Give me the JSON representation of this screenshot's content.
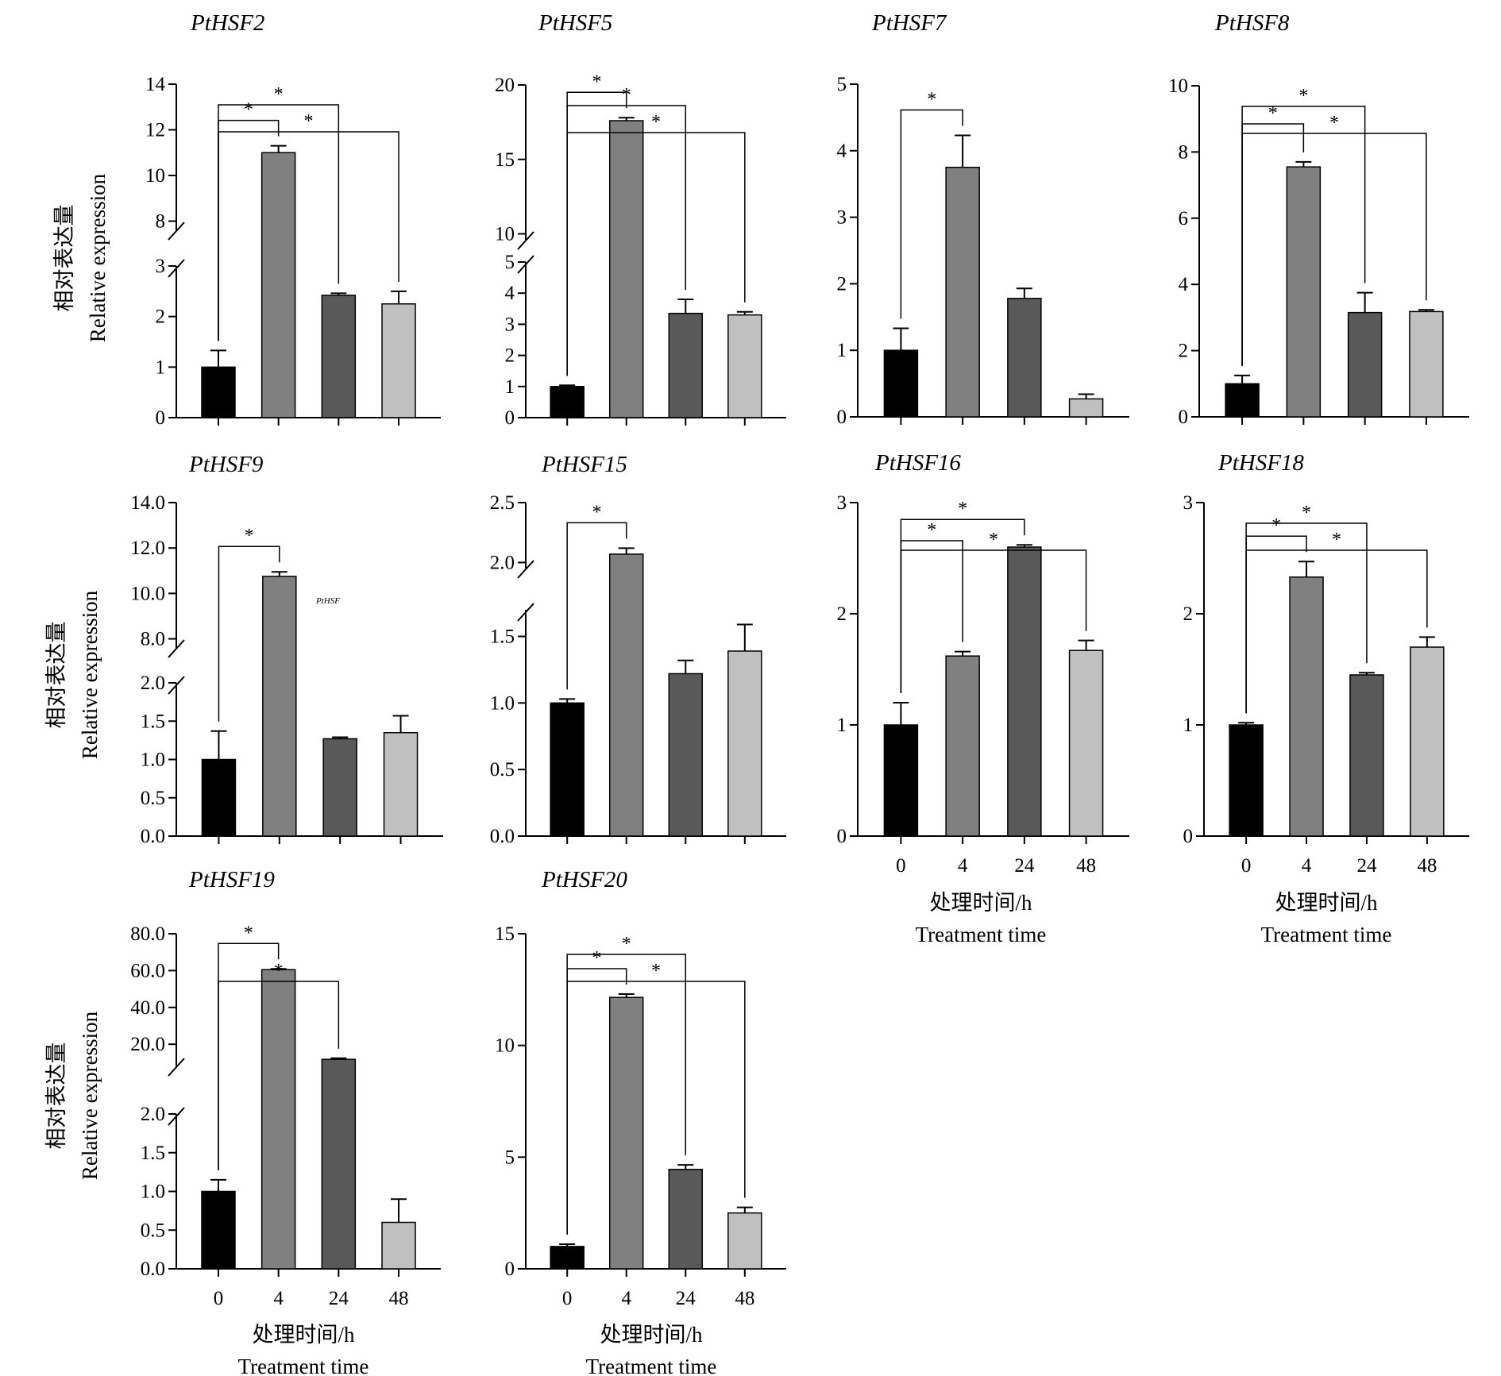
{
  "figure": {
    "y_label_cn": "相对表达量",
    "y_label_en": "Relative expression",
    "x_label_cn": "处理时间/h",
    "x_label_en": "Treatment time",
    "stray_label": "PtHSF",
    "bar_colors": [
      "#000000",
      "#808080",
      "#595959",
      "#c0c0c0"
    ]
  },
  "chart_data": [
    {
      "type": "bar",
      "title": "PtHSF2",
      "categories": [
        "0",
        "4",
        "24",
        "48"
      ],
      "values": [
        1.0,
        11.0,
        2.42,
        2.25
      ],
      "errors": [
        0.33,
        0.3,
        0.04,
        0.25
      ],
      "broken_axis": true,
      "lower_ylim": [
        0,
        3
      ],
      "upper_ylim": [
        7.6,
        14
      ],
      "yticks_lower": [
        0,
        1,
        2,
        3
      ],
      "yticks_upper": [
        8,
        10,
        12,
        14
      ],
      "significance": [
        {
          "from": "0",
          "to": "4",
          "label": "*"
        },
        {
          "from": "0",
          "to": "24",
          "label": "*"
        },
        {
          "from": "0",
          "to": "48",
          "label": "*"
        }
      ]
    },
    {
      "type": "bar",
      "title": "PtHSF5",
      "categories": [
        "0",
        "4",
        "24",
        "48"
      ],
      "values": [
        1.0,
        17.6,
        3.35,
        3.3
      ],
      "errors": [
        0.04,
        0.2,
        0.45,
        0.1
      ],
      "broken_axis": true,
      "lower_ylim": [
        0,
        5
      ],
      "upper_ylim": [
        9.6,
        20
      ],
      "yticks_lower": [
        0,
        1,
        2,
        3,
        4,
        5
      ],
      "yticks_upper": [
        10,
        15,
        20
      ],
      "significance": [
        {
          "from": "0",
          "to": "4",
          "label": "*"
        },
        {
          "from": "0",
          "to": "24",
          "label": "*"
        },
        {
          "from": "0",
          "to": "48",
          "label": "*"
        }
      ]
    },
    {
      "type": "bar",
      "title": "PtHSF7",
      "categories": [
        "0",
        "4",
        "24",
        "48"
      ],
      "values": [
        1.0,
        3.75,
        1.78,
        0.27
      ],
      "errors": [
        0.33,
        0.48,
        0.15,
        0.07
      ],
      "broken_axis": false,
      "ylim": [
        0,
        5
      ],
      "yticks": [
        0,
        1,
        2,
        3,
        4,
        5
      ],
      "significance": [
        {
          "from": "0",
          "to": "4",
          "label": "*"
        }
      ]
    },
    {
      "type": "bar",
      "title": "PtHSF8",
      "categories": [
        "0",
        "4",
        "24",
        "48"
      ],
      "values": [
        1.0,
        7.55,
        3.15,
        3.18
      ],
      "errors": [
        0.25,
        0.15,
        0.6,
        0.05
      ],
      "broken_axis": false,
      "ylim": [
        0,
        10
      ],
      "yticks": [
        0,
        2,
        4,
        6,
        8,
        10
      ],
      "significance": [
        {
          "from": "0",
          "to": "4",
          "label": "*"
        },
        {
          "from": "0",
          "to": "24",
          "label": "*"
        },
        {
          "from": "0",
          "to": "48",
          "label": "*"
        }
      ]
    },
    {
      "type": "bar",
      "title": "PtHSF9",
      "categories": [
        "0",
        "4",
        "24",
        "48"
      ],
      "values": [
        1.0,
        10.75,
        1.27,
        1.35
      ],
      "errors": [
        0.37,
        0.2,
        0.02,
        0.22
      ],
      "broken_axis": true,
      "lower_ylim": [
        0,
        2.0
      ],
      "upper_ylim": [
        7.6,
        14
      ],
      "yticks_lower": [
        0,
        0.5,
        1.0,
        1.5,
        2.0
      ],
      "yticks_upper": [
        8,
        10,
        12,
        14
      ],
      "tick_decimals": 1,
      "significance": [
        {
          "from": "0",
          "to": "4",
          "label": "*"
        }
      ]
    },
    {
      "type": "bar",
      "title": "PtHSF15",
      "categories": [
        "0",
        "4",
        "24",
        "48"
      ],
      "values": [
        1.0,
        2.07,
        1.22,
        1.39
      ],
      "errors": [
        0.03,
        0.05,
        0.1,
        0.2
      ],
      "broken_axis": true,
      "lower_ylim": [
        0,
        1.7
      ],
      "upper_ylim": [
        1.95,
        2.5
      ],
      "yticks_lower": [
        0,
        0.5,
        1.0,
        1.5
      ],
      "yticks_upper": [
        2.0,
        2.5
      ],
      "tick_decimals": 1,
      "significance": [
        {
          "from": "0",
          "to": "4",
          "label": "*"
        }
      ]
    },
    {
      "type": "bar",
      "title": "PtHSF16",
      "categories": [
        "0",
        "4",
        "24",
        "48"
      ],
      "values": [
        1.0,
        1.62,
        2.6,
        1.67
      ],
      "errors": [
        0.2,
        0.04,
        0.02,
        0.09
      ],
      "broken_axis": false,
      "ylim": [
        0,
        3
      ],
      "yticks": [
        0,
        1,
        2,
        3
      ],
      "significance": [
        {
          "from": "0",
          "to": "4",
          "label": "*"
        },
        {
          "from": "0",
          "to": "24",
          "label": "*"
        },
        {
          "from": "0",
          "to": "48",
          "label": "*"
        }
      ]
    },
    {
      "type": "bar",
      "title": "PtHSF18",
      "categories": [
        "0",
        "4",
        "24",
        "48"
      ],
      "values": [
        1.0,
        2.33,
        1.45,
        1.7
      ],
      "errors": [
        0.02,
        0.14,
        0.02,
        0.09
      ],
      "broken_axis": false,
      "ylim": [
        0,
        3
      ],
      "yticks": [
        0,
        1,
        2,
        3
      ],
      "significance": [
        {
          "from": "0",
          "to": "4",
          "label": "*"
        },
        {
          "from": "0",
          "to": "24",
          "label": "*"
        },
        {
          "from": "0",
          "to": "48",
          "label": "*"
        }
      ]
    },
    {
      "type": "bar",
      "title": "PtHSF19",
      "categories": [
        "0",
        "4",
        "24",
        "48"
      ],
      "values": [
        1.0,
        60.5,
        11.8,
        0.6
      ],
      "errors": [
        0.15,
        0.4,
        0.6,
        0.3
      ],
      "broken_axis": true,
      "lower_ylim": [
        0,
        2.0
      ],
      "upper_ylim": [
        8,
        80
      ],
      "yticks_lower": [
        0,
        0.5,
        1.0,
        1.5,
        2.0
      ],
      "yticks_upper": [
        20,
        40,
        60,
        80
      ],
      "tick_decimals": 1,
      "significance": [
        {
          "from": "0",
          "to": "4",
          "label": "*"
        },
        {
          "from": "0",
          "to": "24",
          "label": "*"
        }
      ]
    },
    {
      "type": "bar",
      "title": "PtHSF20",
      "categories": [
        "0",
        "4",
        "24",
        "48"
      ],
      "values": [
        1.0,
        12.15,
        4.45,
        2.5
      ],
      "errors": [
        0.1,
        0.15,
        0.2,
        0.25
      ],
      "broken_axis": false,
      "ylim": [
        0,
        15
      ],
      "yticks": [
        0,
        5,
        10,
        15
      ],
      "significance": [
        {
          "from": "0",
          "to": "4",
          "label": "*"
        },
        {
          "from": "0",
          "to": "24",
          "label": "*"
        },
        {
          "from": "0",
          "to": "48",
          "label": "*"
        }
      ]
    }
  ]
}
